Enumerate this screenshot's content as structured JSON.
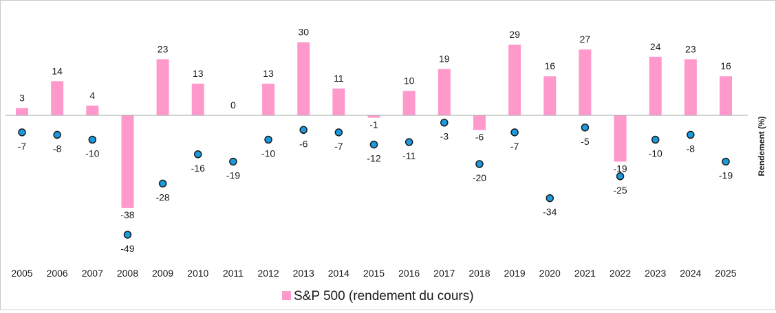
{
  "chart_data": {
    "type": "bar",
    "categories": [
      "2005",
      "2006",
      "2007",
      "2008",
      "2009",
      "2010",
      "2011",
      "2012",
      "2013",
      "2014",
      "2015",
      "2016",
      "2017",
      "2018",
      "2019",
      "2020",
      "2021",
      "2022",
      "2023",
      "2024",
      "2025"
    ],
    "series": [
      {
        "name": "S&P 500 (rendement du cours)",
        "type": "bar",
        "color": "#ff99cc",
        "values": [
          3,
          14,
          4,
          -38,
          23,
          13,
          0,
          13,
          30,
          11,
          -1,
          10,
          19,
          -6,
          29,
          16,
          27,
          -19,
          24,
          23,
          16
        ]
      },
      {
        "type": "scatter",
        "color": "#1a9be0",
        "values": [
          -7,
          -8,
          -10,
          -49,
          -28,
          -16,
          -19,
          -10,
          -6,
          -7,
          -12,
          -11,
          -3,
          -20,
          -7,
          -34,
          -5,
          -25,
          -10,
          -8,
          -19
        ]
      }
    ],
    "ylabel": "Rendement (%)",
    "ylim": [
      -60,
      36
    ],
    "legend_position": "bottom-center",
    "grid": false
  }
}
